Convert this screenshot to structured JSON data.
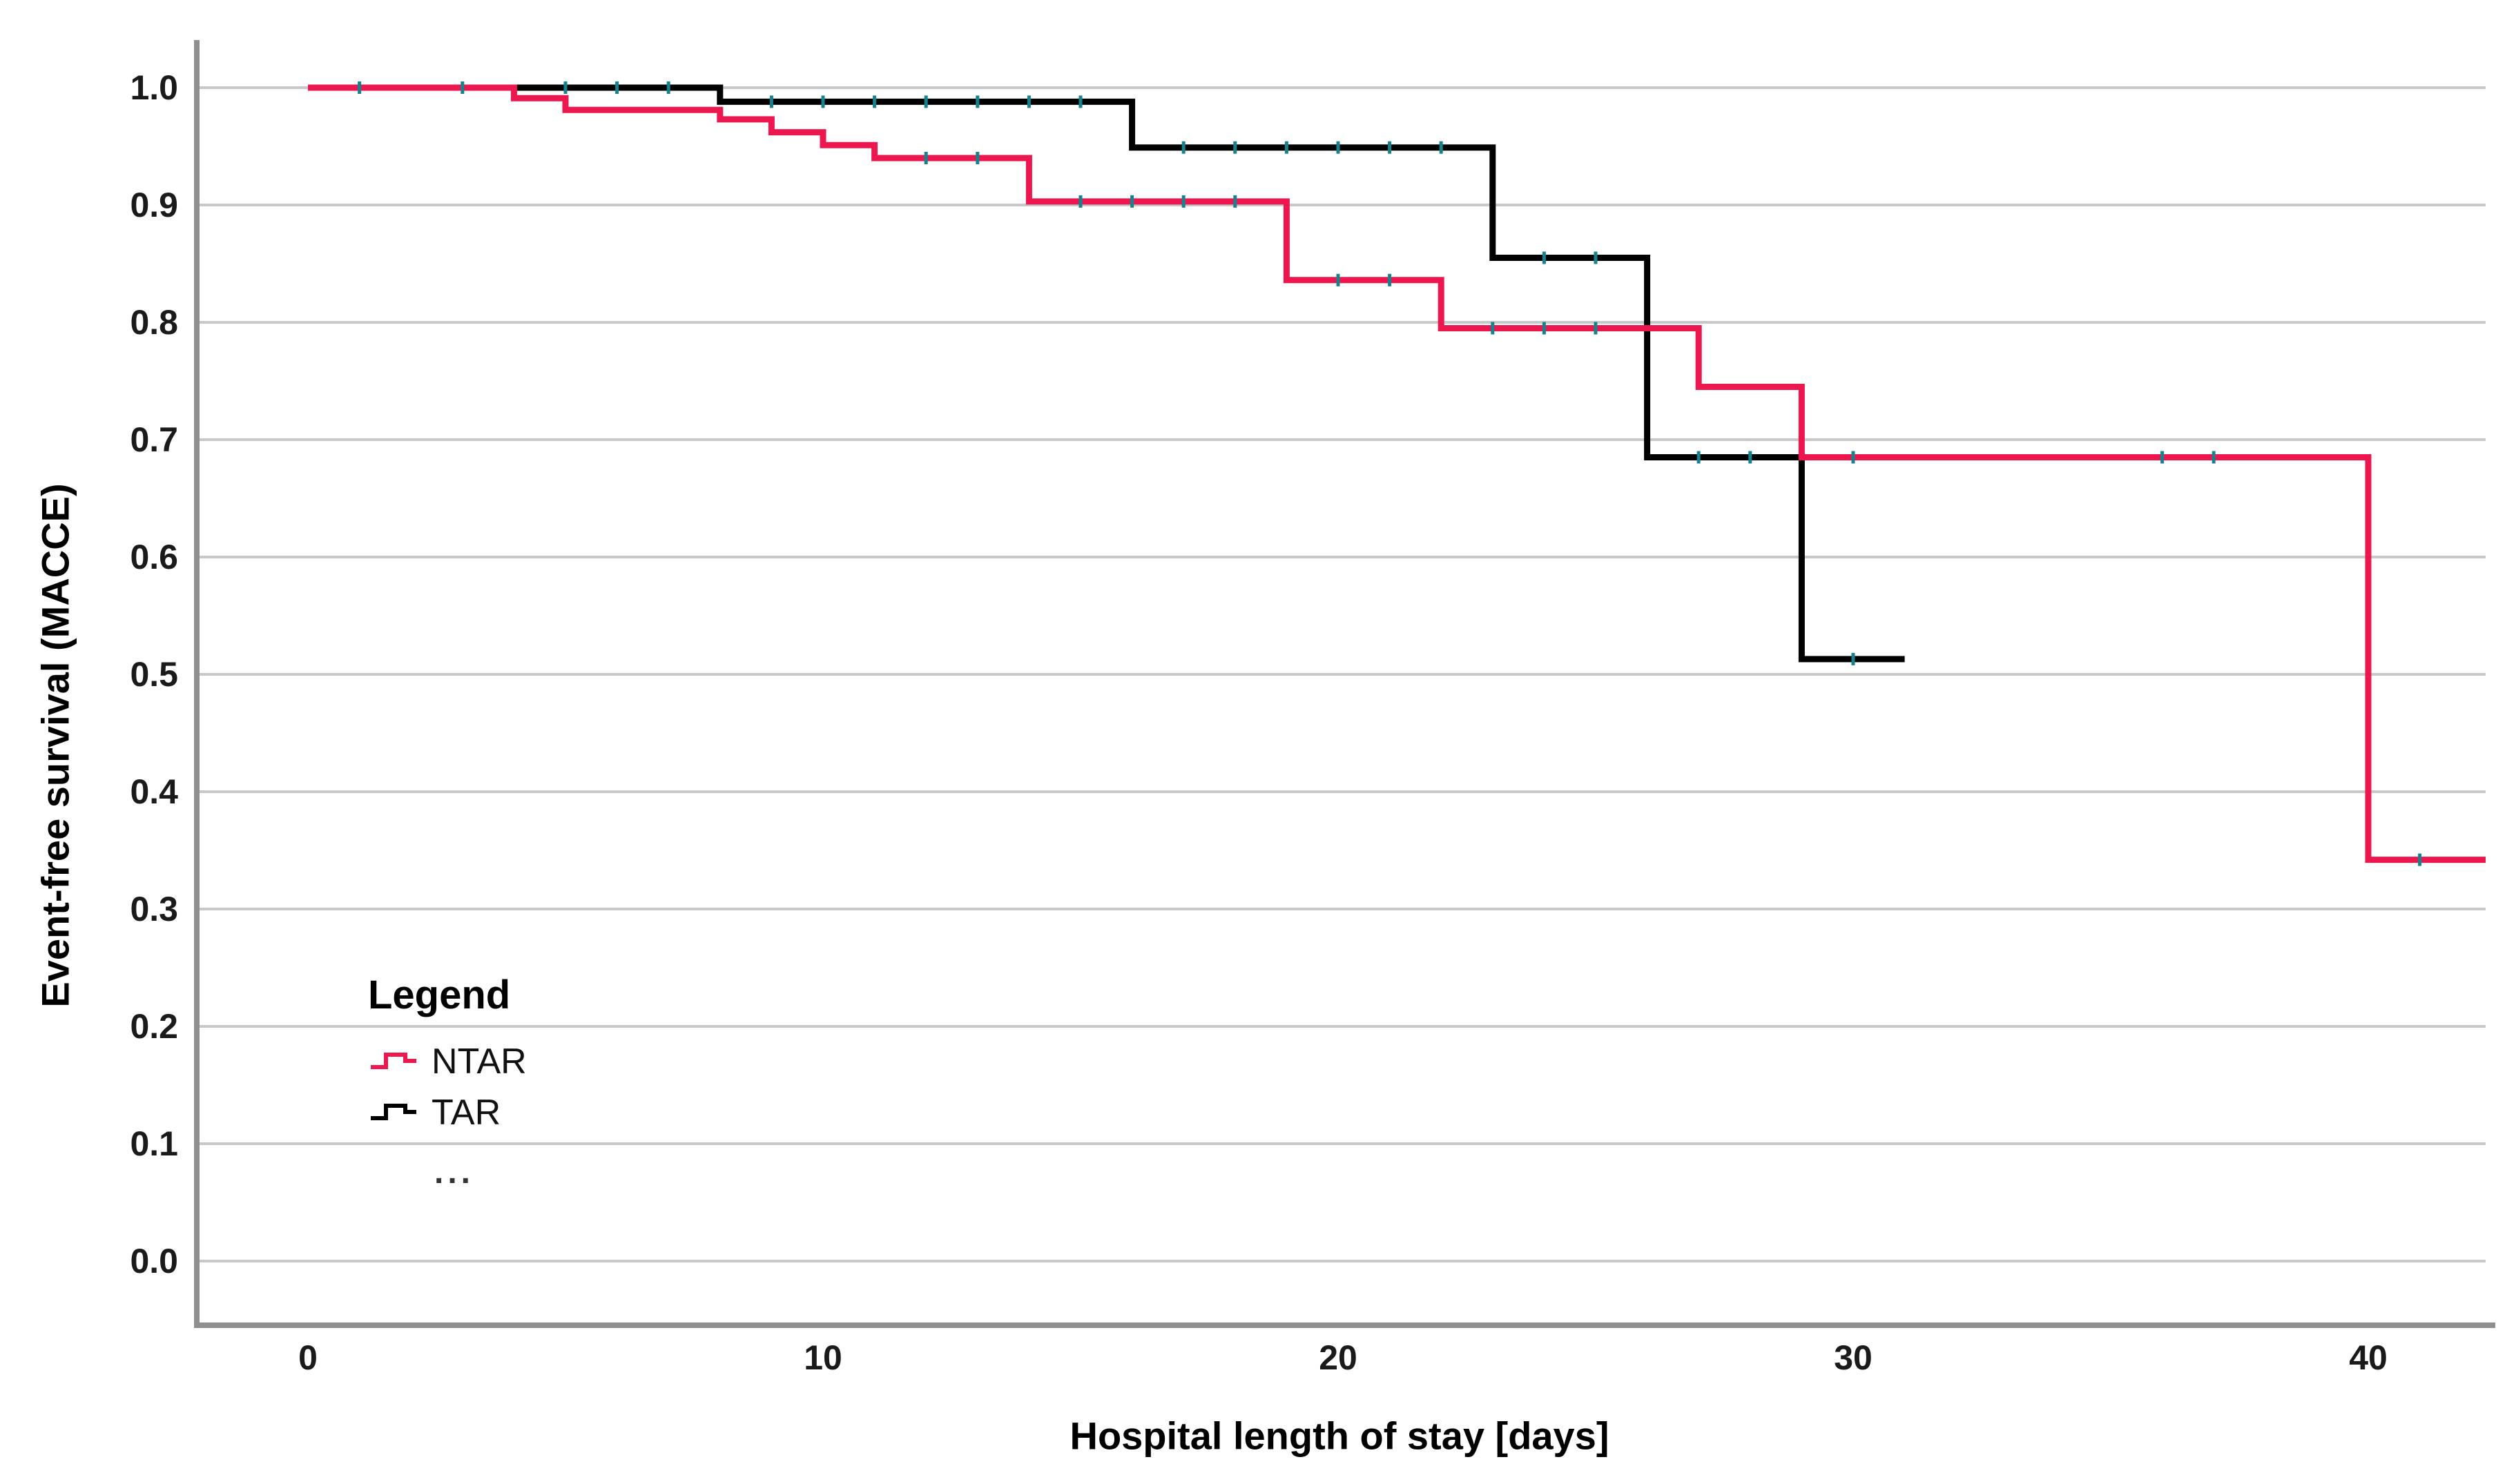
{
  "chart_data": {
    "type": "line",
    "subtype": "kaplan-meier-step-survival",
    "title": "",
    "xlabel": "Hospital length of stay [days]",
    "ylabel": "Event-free survival (MACCE)",
    "xlim": [
      -2.2,
      42.3
    ],
    "ylim": [
      -0.055,
      1.04
    ],
    "grid": "horizontal-only",
    "grid_color": "#c8c8c8",
    "axis_line_color": "#8f8f8f",
    "censor_mark_color": "#17828b",
    "x_ticks": [
      {
        "label": "0",
        "value": 0
      },
      {
        "label": "10",
        "value": 10
      },
      {
        "label": "20",
        "value": 20
      },
      {
        "label": "30",
        "value": 30
      },
      {
        "label": "40",
        "value": 40
      }
    ],
    "y_ticks": [
      {
        "label": "1.0",
        "value": 1.0
      },
      {
        "label": "0.9",
        "value": 0.9
      },
      {
        "label": "0.8",
        "value": 0.8
      },
      {
        "label": "0.7",
        "value": 0.7
      },
      {
        "label": "0.6",
        "value": 0.6
      },
      {
        "label": "0.5",
        "value": 0.5
      },
      {
        "label": "0.4",
        "value": 0.4
      },
      {
        "label": "0.3",
        "value": 0.3
      },
      {
        "label": "0.2",
        "value": 0.2
      },
      {
        "label": "0.1",
        "value": 0.1
      },
      {
        "label": "0.0",
        "value": 0.0
      }
    ],
    "series": [
      {
        "name": "NTAR",
        "color": "#ed174f",
        "start": {
          "x": 0,
          "y": 1.0
        },
        "steps": [
          [
            4,
            0.991
          ],
          [
            5,
            0.981
          ],
          [
            8,
            0.973
          ],
          [
            9,
            0.962
          ],
          [
            10,
            0.951
          ],
          [
            11,
            0.94
          ],
          [
            14,
            0.903
          ],
          [
            19,
            0.836
          ],
          [
            22,
            0.795
          ],
          [
            27,
            0.745
          ],
          [
            29,
            0.685
          ],
          [
            40,
            0.342
          ]
        ],
        "end_x": 42.3,
        "censor_marks": [
          [
            12,
            0.94
          ],
          [
            13,
            0.94
          ],
          [
            15,
            0.903
          ],
          [
            16,
            0.903
          ],
          [
            17,
            0.903
          ],
          [
            18,
            0.903
          ],
          [
            20,
            0.836
          ],
          [
            21,
            0.836
          ],
          [
            23,
            0.795
          ],
          [
            24,
            0.795
          ],
          [
            25,
            0.795
          ],
          [
            30,
            0.685
          ],
          [
            36,
            0.685
          ],
          [
            37,
            0.685
          ],
          [
            41,
            0.342
          ]
        ]
      },
      {
        "name": "TAR",
        "color": "#000000",
        "start": {
          "x": 0,
          "y": 1.0
        },
        "steps": [
          [
            8,
            0.988
          ],
          [
            16,
            0.949
          ],
          [
            23,
            0.855
          ],
          [
            26,
            0.685
          ],
          [
            29,
            0.513
          ]
        ],
        "end_x": 31,
        "censor_marks": [
          [
            1,
            1.0
          ],
          [
            3,
            1.0
          ],
          [
            5,
            1.0
          ],
          [
            6,
            1.0
          ],
          [
            7,
            1.0
          ],
          [
            9,
            0.988
          ],
          [
            10,
            0.988
          ],
          [
            11,
            0.988
          ],
          [
            12,
            0.988
          ],
          [
            13,
            0.988
          ],
          [
            14,
            0.988
          ],
          [
            15,
            0.988
          ],
          [
            17,
            0.949
          ],
          [
            18,
            0.949
          ],
          [
            19,
            0.949
          ],
          [
            20,
            0.949
          ],
          [
            21,
            0.949
          ],
          [
            22,
            0.949
          ],
          [
            24,
            0.855
          ],
          [
            25,
            0.855
          ],
          [
            27,
            0.685
          ],
          [
            28,
            0.685
          ],
          [
            30,
            0.513
          ]
        ]
      }
    ],
    "legend": {
      "position": "inside-lower-left",
      "title": "Legend",
      "items": [
        {
          "label": "NTAR",
          "color": "#ed174f"
        },
        {
          "label": "TAR",
          "color": "#000000"
        }
      ],
      "extra_text": "..."
    }
  }
}
